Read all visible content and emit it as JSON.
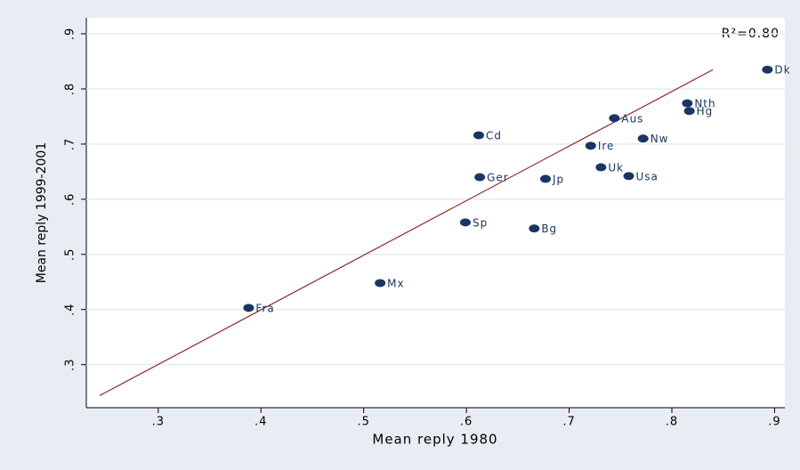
{
  "chart_data": {
    "type": "scatter",
    "xlabel": "Mean reply 1980",
    "ylabel": "Mean reply 1999-2001",
    "annotation": "R²=0.80",
    "xlim": [
      0.23,
      0.91
    ],
    "ylim": [
      0.222,
      0.929
    ],
    "xticks": [
      {
        "value": 0.3,
        "label": ".3"
      },
      {
        "value": 0.4,
        "label": ".4"
      },
      {
        "value": 0.5,
        "label": ".5"
      },
      {
        "value": 0.6,
        "label": ".6"
      },
      {
        "value": 0.7,
        "label": ".7"
      },
      {
        "value": 0.8,
        "label": ".8"
      },
      {
        "value": 0.9,
        "label": ".9"
      }
    ],
    "yticks": [
      {
        "value": 0.3,
        "label": ".3"
      },
      {
        "value": 0.4,
        "label": ".4"
      },
      {
        "value": 0.5,
        "label": ".5"
      },
      {
        "value": 0.6,
        "label": ".6"
      },
      {
        "value": 0.7,
        "label": ".7"
      },
      {
        "value": 0.8,
        "label": ".8"
      },
      {
        "value": 0.9,
        "label": ".9"
      }
    ],
    "grid": true,
    "series": [
      {
        "color": "#1a3563",
        "labels": [
          "Fra",
          "Mx",
          "Sp",
          "Cd",
          "Ger",
          "Jp",
          "Bg",
          "Ire",
          "Uk",
          "Aus",
          "Usa",
          "Nw",
          "Nth",
          "Hg",
          "Dk"
        ],
        "x": [
          0.388,
          0.516,
          0.599,
          0.612,
          0.613,
          0.677,
          0.666,
          0.721,
          0.731,
          0.744,
          0.758,
          0.772,
          0.815,
          0.817,
          0.893
        ],
        "values": [
          0.403,
          0.448,
          0.558,
          0.716,
          0.64,
          0.637,
          0.547,
          0.697,
          0.658,
          0.747,
          0.642,
          0.71,
          0.774,
          0.76,
          0.835
        ]
      }
    ],
    "fit_line": {
      "color": "#8b2a2a",
      "x": [
        0.243,
        0.84
      ],
      "y": [
        0.244,
        0.835
      ]
    }
  }
}
